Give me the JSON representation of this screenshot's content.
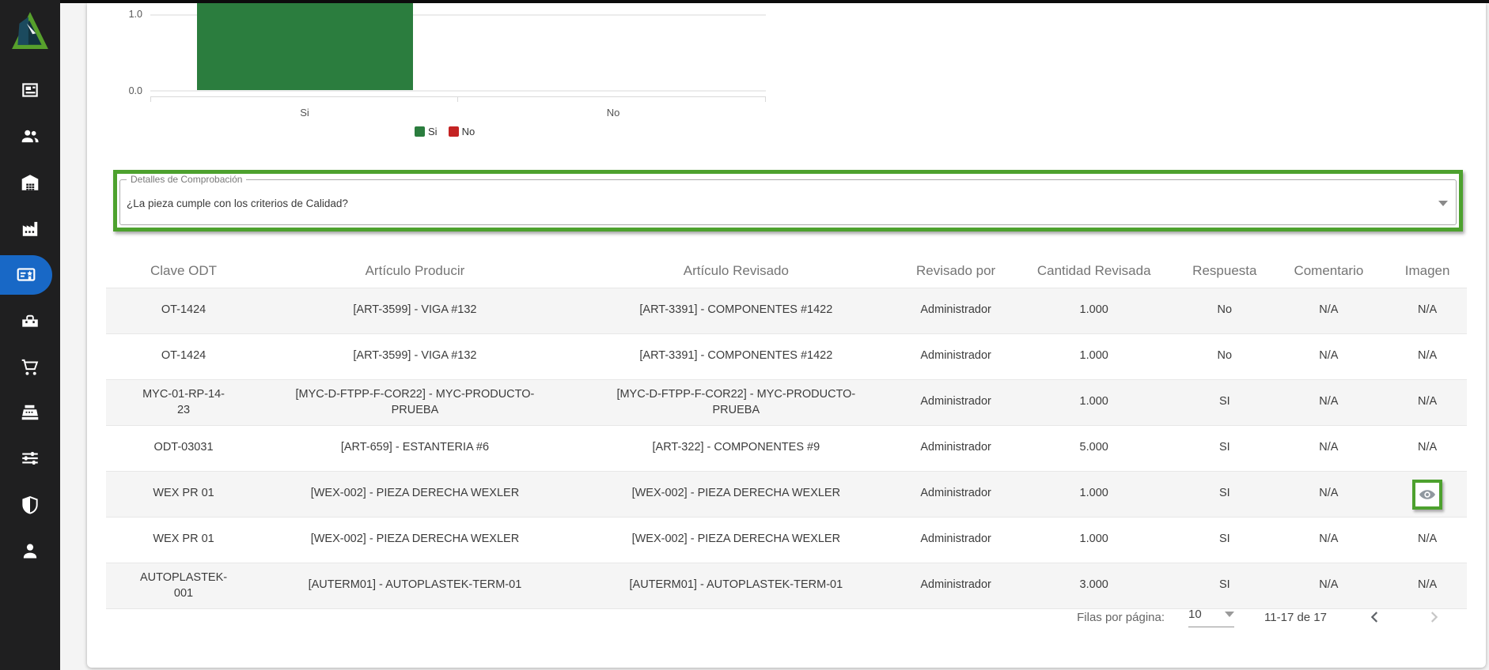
{
  "sidebar": {
    "logo": "company-logo",
    "items": [
      {
        "name": "news",
        "icon": "news-icon",
        "active": false
      },
      {
        "name": "people",
        "icon": "people-icon",
        "active": false
      },
      {
        "name": "warehouse",
        "icon": "warehouse-icon",
        "active": false
      },
      {
        "name": "factory",
        "icon": "factory-icon",
        "active": false
      },
      {
        "name": "quality",
        "icon": "quality-icon",
        "active": true
      },
      {
        "name": "toolbox",
        "icon": "toolbox-icon",
        "active": false
      },
      {
        "name": "cart",
        "icon": "cart-icon",
        "active": false
      },
      {
        "name": "register",
        "icon": "register-icon",
        "active": false
      },
      {
        "name": "tune",
        "icon": "tune-icon",
        "active": false
      },
      {
        "name": "shield",
        "icon": "shield-icon",
        "active": false
      },
      {
        "name": "person",
        "icon": "person-icon",
        "active": false
      }
    ],
    "active_color": "#1868c6",
    "background_color": "#1f1f20"
  },
  "chart_data": {
    "type": "bar",
    "categories": [
      "Si",
      "No"
    ],
    "series": [
      {
        "name": "Si",
        "color": "#2b7d3e",
        "value_note": "bar cropped at top of viewport, extends above 1.0"
      },
      {
        "name": "No",
        "color": "#c42323",
        "value": 0
      }
    ],
    "yticks": [
      "1.0",
      "0.0"
    ],
    "ylim_visible": [
      0.0,
      1.0
    ],
    "grid": "horizontal-lines",
    "legend": {
      "position": "bottom",
      "entries": [
        "Si",
        "No"
      ]
    }
  },
  "comprobacion": {
    "legend": "Detalles de Comprobación",
    "selected_question": "¿La pieza cumple con los criterios de Calidad?",
    "highlight_color": "#4da12e"
  },
  "table": {
    "headers": [
      "Clave ODT",
      "Artículo Producir",
      "Artículo Revisado",
      "Revisado por",
      "Cantidad Revisada",
      "Respuesta",
      "Comentario",
      "Imagen"
    ],
    "rows": [
      [
        "OT-1424",
        "[ART-3599] - VIGA #132",
        "[ART-3391] - COMPONENTES #1422",
        "Administrador",
        "1.000",
        "No",
        "N/A",
        "N/A"
      ],
      [
        "OT-1424",
        "[ART-3599] - VIGA #132",
        "[ART-3391] - COMPONENTES #1422",
        "Administrador",
        "1.000",
        "No",
        "N/A",
        "N/A"
      ],
      [
        "MYC-01-RP-14-23",
        "[MYC-D-FTPP-F-COR22] - MYC-PRODUCTO-PRUEBA",
        "[MYC-D-FTPP-F-COR22] - MYC-PRODUCTO-PRUEBA",
        "Administrador",
        "1.000",
        "SI",
        "N/A",
        "N/A"
      ],
      [
        "ODT-03031",
        "[ART-659] - ESTANTERIA #6",
        "[ART-322] - COMPONENTES #9",
        "Administrador",
        "5.000",
        "SI",
        "N/A",
        "N/A"
      ],
      [
        "WEX PR 01",
        "[WEX-002] - PIEZA DERECHA WEXLER",
        "[WEX-002] - PIEZA DERECHA WEXLER",
        "Administrador",
        "1.000",
        "SI",
        "N/A",
        "eye-icon"
      ],
      [
        "WEX PR 01",
        "[WEX-002] - PIEZA DERECHA WEXLER",
        "[WEX-002] - PIEZA DERECHA WEXLER",
        "Administrador",
        "1.000",
        "SI",
        "N/A",
        "N/A"
      ],
      [
        "AUTOPLASTEK-001",
        "[AUTERM01] - AUTOPLASTEK-TERM-01",
        "[AUTERM01] - AUTOPLASTEK-TERM-01",
        "Administrador",
        "3.000",
        "SI",
        "N/A",
        "N/A"
      ]
    ]
  },
  "pagination": {
    "rows_per_page_label": "Filas por página:",
    "rows_per_page": "10",
    "range": "11-17 de 17",
    "prev_enabled": true,
    "next_enabled": false
  }
}
